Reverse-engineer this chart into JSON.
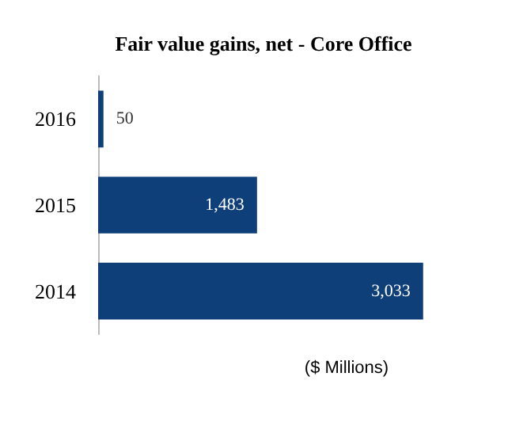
{
  "chart_data": {
    "type": "bar",
    "orientation": "horizontal",
    "title": "Fair value gains, net - Core Office",
    "xlabel": "($ Millions)",
    "categories": [
      "2016",
      "2015",
      "2014"
    ],
    "values": [
      50,
      1483,
      3033
    ],
    "value_labels": [
      "50",
      "1,483",
      "3,033"
    ],
    "color": "#0e3f78"
  }
}
